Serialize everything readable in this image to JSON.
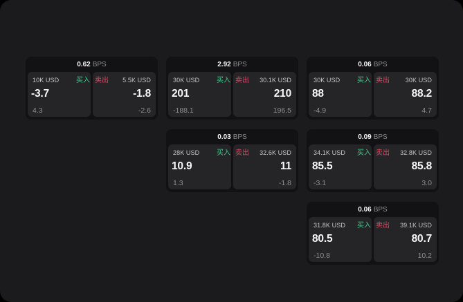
{
  "labels": {
    "bps_unit": "BPS",
    "buy": "买入",
    "sell": "卖出"
  },
  "colors": {
    "page_background": "#000000",
    "panel_background": "#1b1b1d",
    "card_background": "#121214",
    "tile_background": "#252528",
    "buy_green": "#3ec98b",
    "sell_red": "#cd4f64"
  },
  "cards": [
    {
      "bps": "0.62",
      "buy": {
        "amount": "10K USD",
        "price": "-3.7",
        "change": "4.3"
      },
      "sell": {
        "amount": "5.5K USD",
        "price": "-1.8",
        "change": "-2.6"
      }
    },
    {
      "bps": "2.92",
      "buy": {
        "amount": "30K USD",
        "price": "201",
        "change": "-188.1"
      },
      "sell": {
        "amount": "30.1K USD",
        "price": "210",
        "change": "196.5"
      }
    },
    {
      "bps": "0.06",
      "buy": {
        "amount": "30K USD",
        "price": "88",
        "change": "-4.9"
      },
      "sell": {
        "amount": "30K USD",
        "price": "88.2",
        "change": "4.7"
      }
    },
    {
      "bps": "0.03",
      "buy": {
        "amount": "28K USD",
        "price": "10.9",
        "change": "1.3"
      },
      "sell": {
        "amount": "32.6K USD",
        "price": "11",
        "change": "-1.8"
      }
    },
    {
      "bps": "0.09",
      "buy": {
        "amount": "34.1K USD",
        "price": "85.5",
        "change": "-3.1"
      },
      "sell": {
        "amount": "32.8K USD",
        "price": "85.8",
        "change": "3.0"
      }
    },
    {
      "bps": "0.06",
      "buy": {
        "amount": "31.8K USD",
        "price": "80.5",
        "change": "-10.8"
      },
      "sell": {
        "amount": "39.1K USD",
        "price": "80.7",
        "change": "10.2"
      }
    }
  ]
}
